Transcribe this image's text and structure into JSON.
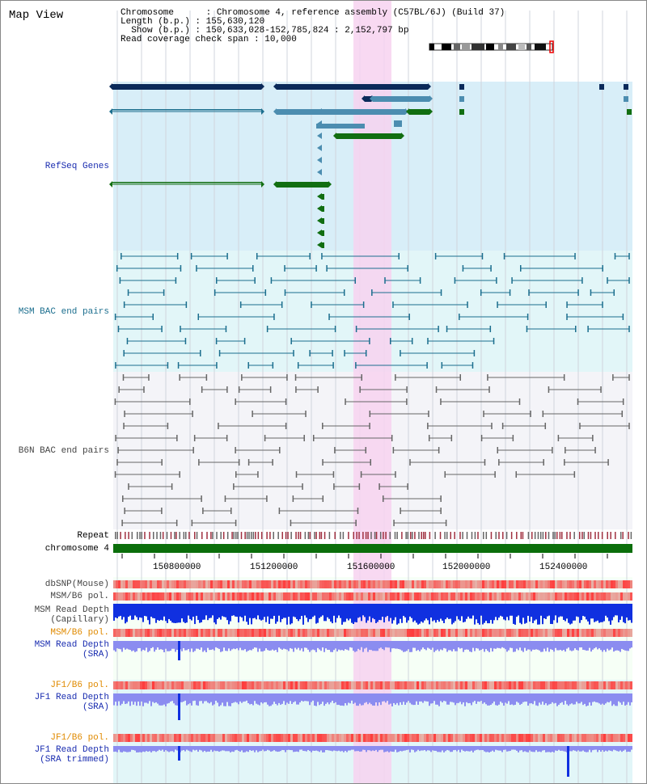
{
  "title": "Map View",
  "info": {
    "chromosome_line": "Chromosome      : Chromosome 4, reference assembly (C57BL/6J) (Build 37)",
    "length_line": "Length (b.p.) : 155,630,120",
    "show_line": "Show (b.p.) : 150,633,028-152,785,824 : 2,152,797 bp",
    "coverage_line": "Read coverage check span : 10,000"
  },
  "tracks": {
    "refseq": "RefSeq Genes",
    "msm_bac": "MSM BAC end pairs",
    "b6n_bac": "B6N BAC end pairs",
    "repeat": "Repeat",
    "chromosome": "chromosome 4",
    "dbsnp": "dbSNP(Mouse)",
    "msm_b6_pol_1": "MSM/B6 pol.",
    "msm_rd_cap_1": "MSM Read Depth",
    "msm_rd_cap_2": "(Capillary)",
    "msm_b6_pol_2": "MSM/B6 pol.",
    "msm_rd_sra_1": "MSM Read Depth",
    "msm_rd_sra_2": "(SRA)",
    "jf1_b6_pol_1": "JF1/B6 pol.",
    "jf1_rd_sra_1": "JF1 Read Depth",
    "jf1_rd_sra_2": "(SRA)",
    "jf1_b6_pol_2": "JF1/B6 pol.",
    "jf1_rd_trim_1": "JF1 Read Depth",
    "jf1_rd_trim_2": "(SRA trimmed)"
  },
  "axis": {
    "ticks": [
      "150800000",
      "151200000",
      "151600000",
      "152000000",
      "152400000"
    ]
  },
  "colors": {
    "refseq_bg": "#d8eef8",
    "msm_bg": "#e2f6f8",
    "b6n_bg": "#f4f4f8",
    "highlight": "#f7d2f0",
    "dark_navy": "#0b2a5a",
    "mid_blue": "#4c8db0",
    "green": "#116e11",
    "teal": "#1b6e8e",
    "gray": "#666666",
    "repeat": "#a03040",
    "chromosome": "#0b6e0b",
    "depth_blue": "#1030e0",
    "depth_light": "#8b8cf0"
  }
}
